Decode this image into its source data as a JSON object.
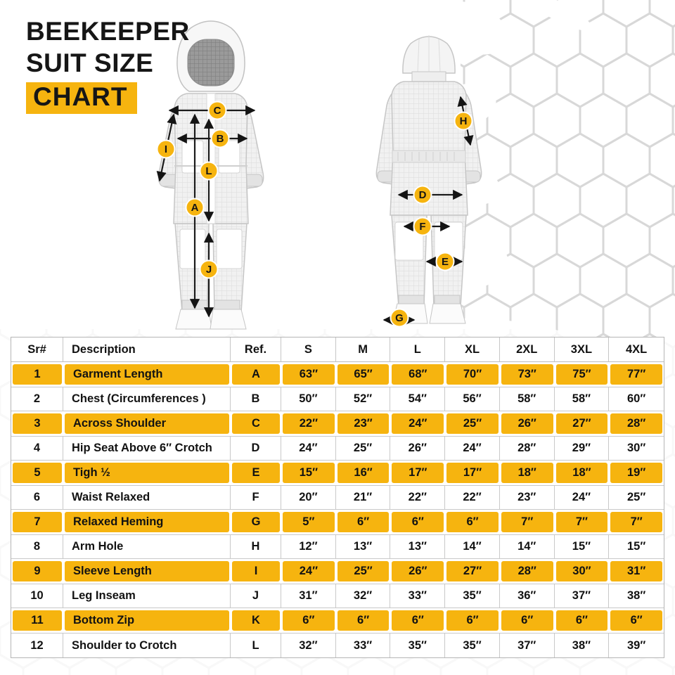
{
  "title": {
    "line1": "BEEKEEPER",
    "line2": "SUIT SIZE",
    "line3": "CHART"
  },
  "colors": {
    "accent": "#F6B40F",
    "heading_text": "#161616",
    "hex_line": "#d8d8d8",
    "table_border": "#c9c9c9"
  },
  "diagram": {
    "front_badges": [
      "C",
      "B",
      "I",
      "L",
      "A",
      "J"
    ],
    "back_badges": [
      "H",
      "D",
      "F",
      "E",
      "G"
    ]
  },
  "chart_data": {
    "type": "table",
    "title": "Beekeeper Suit Size Chart",
    "columns": [
      "Sr#",
      "Description",
      "Ref.",
      "S",
      "M",
      "L",
      "XL",
      "2XL",
      "3XL",
      "4XL"
    ],
    "rows": [
      {
        "sr": "1",
        "description": "Garment Length",
        "ref": "A",
        "values": [
          "63″",
          "65″",
          "68″",
          "70″",
          "73″",
          "75″",
          "77″"
        ],
        "highlight": true
      },
      {
        "sr": "2",
        "description": "Chest (Circumferences )",
        "ref": "B",
        "values": [
          "50″",
          "52″",
          "54″",
          "56″",
          "58″",
          "58″",
          "60″"
        ],
        "highlight": false
      },
      {
        "sr": "3",
        "description": "Across Shoulder",
        "ref": "C",
        "values": [
          "22″",
          "23″",
          "24″",
          "25″",
          "26″",
          "27″",
          "28″"
        ],
        "highlight": true
      },
      {
        "sr": "4",
        "description": "Hip Seat Above 6″ Crotch",
        "ref": "D",
        "values": [
          "24″",
          "25″",
          "26″",
          "24″",
          "28″",
          "29″",
          "30″"
        ],
        "highlight": false
      },
      {
        "sr": "5",
        "description": "Tigh ½",
        "ref": "E",
        "values": [
          "15″",
          "16″",
          "17″",
          "17″",
          "18″",
          "18″",
          "19″"
        ],
        "highlight": true
      },
      {
        "sr": "6",
        "description": "Waist Relaxed",
        "ref": "F",
        "values": [
          "20″",
          "21″",
          "22″",
          "22″",
          "23″",
          "24″",
          "25″"
        ],
        "highlight": false
      },
      {
        "sr": "7",
        "description": "Relaxed Heming",
        "ref": "G",
        "values": [
          "5″",
          "6″",
          "6″",
          "6″",
          "7″",
          "7″",
          "7″"
        ],
        "highlight": true
      },
      {
        "sr": "8",
        "description": "Arm Hole",
        "ref": "H",
        "values": [
          "12″",
          "13″",
          "13″",
          "14″",
          "14″",
          "15″",
          "15″"
        ],
        "highlight": false
      },
      {
        "sr": "9",
        "description": "Sleeve Length",
        "ref": "I",
        "values": [
          "24″",
          "25″",
          "26″",
          "27″",
          "28″",
          "30″",
          "31″"
        ],
        "highlight": true
      },
      {
        "sr": "10",
        "description": "Leg Inseam",
        "ref": "J",
        "values": [
          "31″",
          "32″",
          "33″",
          "35″",
          "36″",
          "37″",
          "38″"
        ],
        "highlight": false
      },
      {
        "sr": "11",
        "description": "Bottom Zip",
        "ref": "K",
        "values": [
          "6″",
          "6″",
          "6″",
          "6″",
          "6″",
          "6″",
          "6″"
        ],
        "highlight": true
      },
      {
        "sr": "12",
        "description": "Shoulder to Crotch",
        "ref": "L",
        "values": [
          "32″",
          "33″",
          "35″",
          "35″",
          "37″",
          "38″",
          "39″"
        ],
        "highlight": false
      }
    ]
  }
}
